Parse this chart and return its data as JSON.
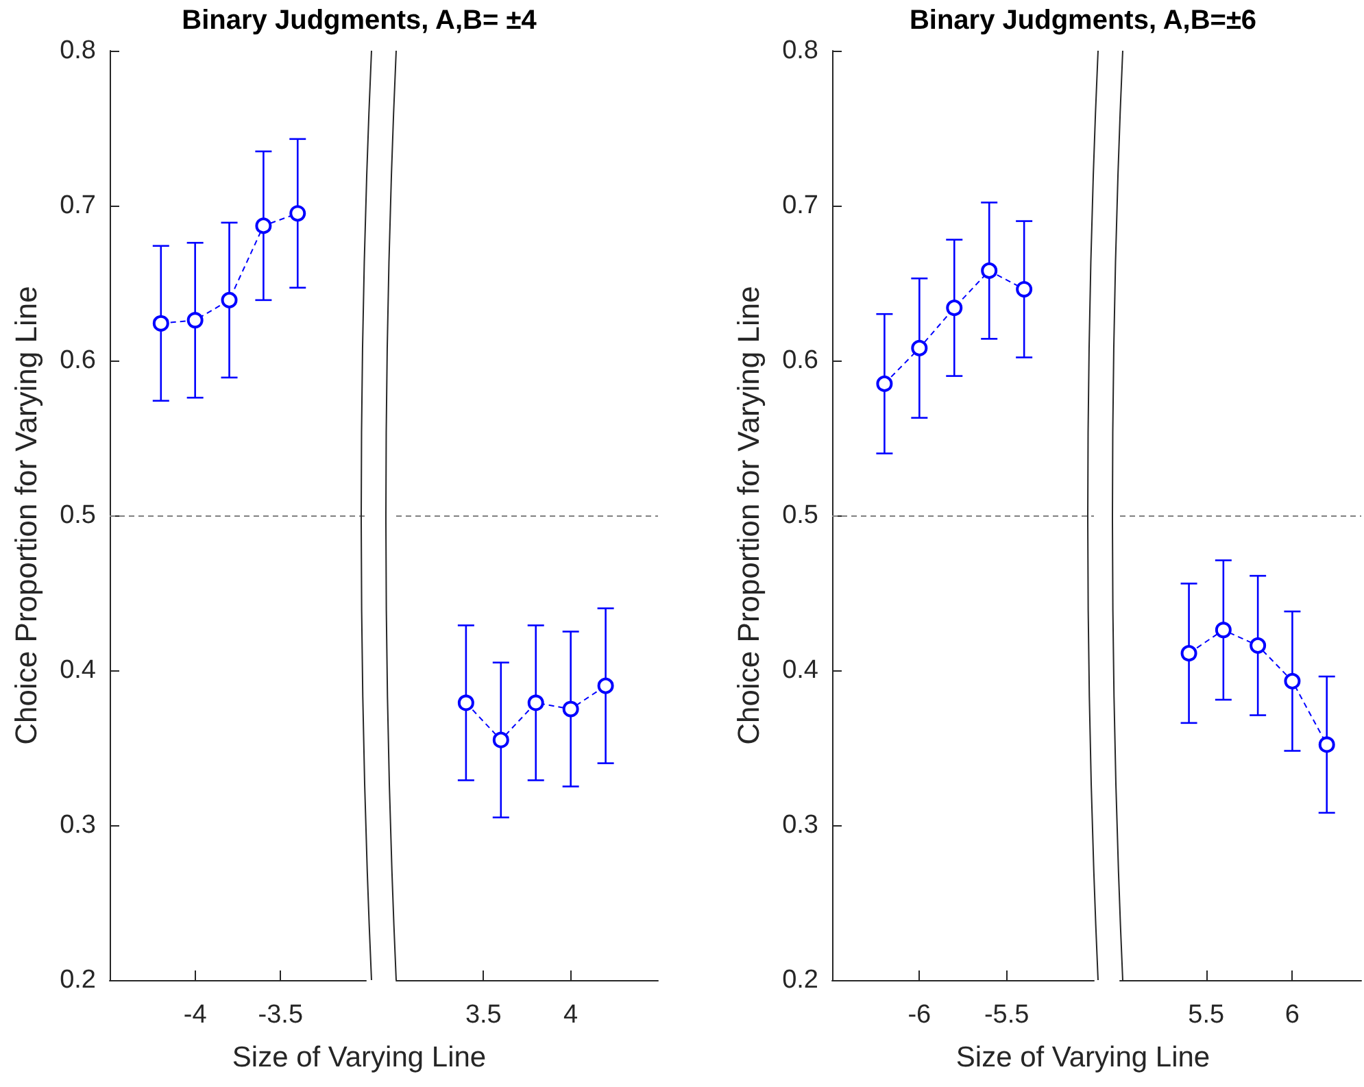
{
  "chart_data": [
    {
      "type": "line",
      "title": "Binary Judgments, A,B= ±4",
      "xlabel": "Size of Varying Line",
      "ylabel": "Choice Proportion for Varying Line",
      "xlim": [
        -4.5,
        -3.0
      ],
      "xticks": [
        -4,
        -3.5
      ],
      "ylim": [
        0.2,
        0.8
      ],
      "yticks": [
        0.2,
        0.3,
        0.4,
        0.5,
        0.6,
        0.7,
        0.8
      ],
      "marker": "circle",
      "line_style": "dashed",
      "x": [
        -4.2,
        -4.0,
        -3.8,
        -3.6,
        -3.4
      ],
      "ref_lines": [
        {
          "axis": "y",
          "value": 0.5,
          "color": "#808080",
          "line_style": "dashed"
        }
      ],
      "series": [
        {
          "color": "#0000ff",
          "values": [
            0.624,
            0.626,
            0.639,
            0.687,
            0.695
          ],
          "errors": [
            0.05,
            0.05,
            0.05,
            0.048,
            0.048
          ]
        }
      ]
    },
    {
      "type": "line",
      "xlim": [
        3.0,
        4.5
      ],
      "xticks": [
        3.5,
        4
      ],
      "ylim": [
        0.2,
        0.8
      ],
      "tick_labels": "x",
      "marker": "circle",
      "line_style": "dashed",
      "x": [
        3.4,
        3.6,
        3.8,
        4.0,
        4.2
      ],
      "ref_lines": [
        {
          "axis": "y",
          "value": 0.5,
          "color": "#808080",
          "line_style": "dashed"
        }
      ],
      "series": [
        {
          "color": "#0000ff",
          "values": [
            0.379,
            0.355,
            0.379,
            0.375,
            0.39
          ],
          "errors": [
            0.05,
            0.05,
            0.05,
            0.05,
            0.05
          ]
        }
      ]
    },
    {
      "type": "line",
      "title": "Binary Judgments, A,B=±6",
      "xlabel": "Size of Varying Line",
      "ylabel": "Choice Proportion for Varying Line",
      "xlim": [
        -6.5,
        -5.0
      ],
      "xticks": [
        -6,
        -5.5
      ],
      "ylim": [
        0.2,
        0.8
      ],
      "yticks": [
        0.2,
        0.3,
        0.4,
        0.5,
        0.6,
        0.7,
        0.8
      ],
      "marker": "circle",
      "line_style": "dashed",
      "x": [
        -6.2,
        -6.0,
        -5.8,
        -5.6,
        -5.4
      ],
      "ref_lines": [
        {
          "axis": "y",
          "value": 0.5,
          "color": "#808080",
          "line_style": "dashed"
        }
      ],
      "series": [
        {
          "color": "#0000ff",
          "values": [
            0.585,
            0.608,
            0.634,
            0.658,
            0.646
          ],
          "errors": [
            0.045,
            0.045,
            0.044,
            0.044,
            0.044
          ]
        }
      ]
    },
    {
      "type": "line",
      "xlim": [
        5.0,
        6.4
      ],
      "xticks": [
        5.5,
        6
      ],
      "ylim": [
        0.2,
        0.8
      ],
      "tick_labels": "x",
      "marker": "circle",
      "line_style": "dashed",
      "x": [
        5.4,
        5.6,
        5.8,
        6.0,
        6.2
      ],
      "ref_lines": [
        {
          "axis": "y",
          "value": 0.5,
          "color": "#808080",
          "line_style": "dashed"
        }
      ],
      "series": [
        {
          "color": "#0000ff",
          "values": [
            0.411,
            0.426,
            0.416,
            0.393,
            0.352
          ],
          "errors": [
            0.045,
            0.045,
            0.045,
            0.045,
            0.044
          ]
        }
      ]
    }
  ]
}
